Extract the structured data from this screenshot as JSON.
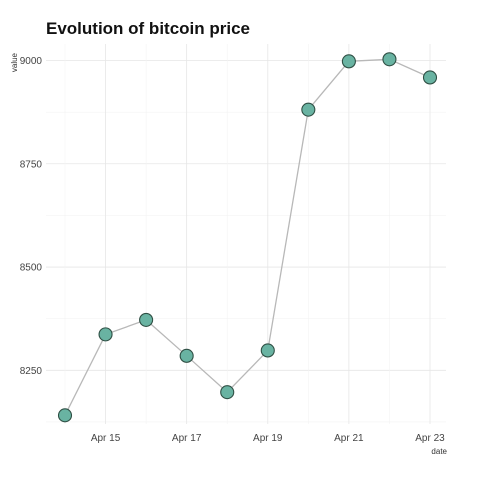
{
  "chart_data": {
    "type": "line",
    "title": "Evolution of bitcoin price",
    "xlabel": "date",
    "ylabel": "value",
    "x": [
      "2018-04-14",
      "2018-04-15",
      "2018-04-16",
      "2018-04-17",
      "2018-04-18",
      "2018-04-19",
      "2018-04-20",
      "2018-04-21",
      "2018-04-22",
      "2018-04-23"
    ],
    "x_ticks": [
      "Apr 15",
      "Apr 17",
      "Apr 19",
      "Apr 21",
      "Apr 23"
    ],
    "y_ticks": [
      "8250",
      "8500",
      "8750",
      "9000"
    ],
    "series": [
      {
        "values": [
          8141,
          8337,
          8372,
          8285,
          8197,
          8298,
          8881,
          8998,
          9003,
          8959
        ]
      }
    ],
    "ylim": [
      8120,
      9040
    ],
    "grid": true,
    "line_color": "#b8b8b8",
    "marker_fill": "#69b3a2",
    "marker_stroke": "#2f4f44"
  }
}
